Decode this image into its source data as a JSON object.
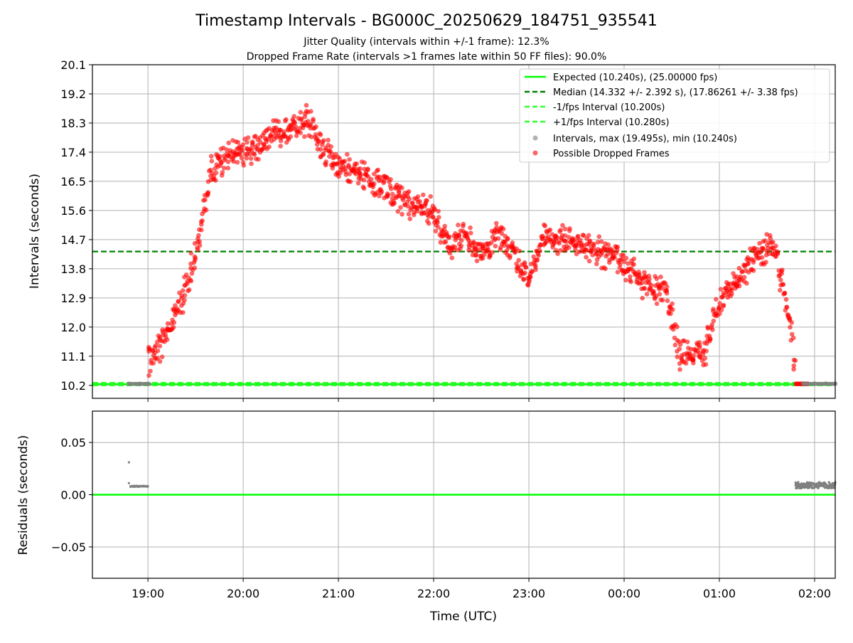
{
  "title": "Timestamp Intervals - BG000C_20250629_184751_935541",
  "subtitle_1": "Jitter Quality (intervals within +/-1 frame): 12.3%",
  "subtitle_2": "Dropped Frame Rate (intervals >1 frames late within 50 FF files): 90.0%",
  "colors": {
    "expected": "#00ff00",
    "median": "#008000",
    "interval_band": "#33ff33",
    "normal_point": "#808080",
    "dropped_point": "#ff0000",
    "grid": "#b0b0b0"
  },
  "chart_data": [
    {
      "type": "scatter",
      "ylabel": "Intervals (seconds)",
      "yticks": [
        "10.2",
        "11.1",
        "12.0",
        "12.9",
        "13.8",
        "14.7",
        "15.6",
        "16.5",
        "17.4",
        "18.3",
        "19.2",
        "20.1"
      ],
      "ylim": [
        9.8,
        20.1
      ],
      "xlim": [
        "18:25",
        "02:13"
      ],
      "grid": true,
      "legend_position": "top-right",
      "reference_lines": {
        "expected": 10.24,
        "median": 14.332,
        "minus_interval": 10.2,
        "plus_interval": 10.28
      },
      "legend": [
        "Expected (10.240s), (25.00000 fps)",
        "Median (14.332 +/- 2.392 s), (17.86261 +/- 3.38 fps)",
        "-1/fps Interval (10.200s)",
        "+1/fps Interval (10.280s)",
        "Intervals, max (19.495s), min (10.240s)",
        "Possible Dropped Frames"
      ],
      "series": [
        {
          "name": "Intervals, max (19.495s), min (10.240s)",
          "points": [
            [
              "18:48",
              10.245
            ],
            [
              "18:55",
              10.245
            ],
            [
              "19:00",
              10.245
            ],
            [
              "01:53",
              10.255
            ],
            [
              "02:00",
              10.255
            ],
            [
              "02:07",
              10.255
            ],
            [
              "02:13",
              10.255
            ]
          ]
        },
        {
          "name": "Possible Dropped Frames",
          "trend": [
            [
              "19:00",
              10.9
            ],
            [
              "19:10",
              11.6
            ],
            [
              "19:20",
              12.7
            ],
            [
              "19:30",
              14.2
            ],
            [
              "19:40",
              16.8
            ],
            [
              "19:50",
              17.3
            ],
            [
              "20:00",
              17.4
            ],
            [
              "20:15",
              17.8
            ],
            [
              "20:30",
              18.2
            ],
            [
              "20:40",
              18.4
            ],
            [
              "20:50",
              17.5
            ],
            [
              "21:00",
              17.1
            ],
            [
              "21:15",
              16.7
            ],
            [
              "21:30",
              16.2
            ],
            [
              "21:45",
              15.8
            ],
            [
              "22:00",
              15.5
            ],
            [
              "22:10",
              14.5
            ],
            [
              "22:20",
              15.0
            ],
            [
              "22:30",
              14.2
            ],
            [
              "22:40",
              14.9
            ],
            [
              "22:50",
              14.3
            ],
            [
              "23:00",
              13.5
            ],
            [
              "23:10",
              14.8
            ],
            [
              "23:20",
              14.7
            ],
            [
              "23:30",
              14.6
            ],
            [
              "23:45",
              14.3
            ],
            [
              "00:00",
              14.0
            ],
            [
              "00:15",
              13.2
            ],
            [
              "00:25",
              13.2
            ],
            [
              "00:30",
              12.4
            ],
            [
              "00:35",
              11.2
            ],
            [
              "00:50",
              11.2
            ],
            [
              "01:00",
              12.8
            ],
            [
              "01:10",
              13.3
            ],
            [
              "01:20",
              14.1
            ],
            [
              "01:30",
              14.5
            ],
            [
              "01:35",
              14.4
            ],
            [
              "01:40",
              13.2
            ],
            [
              "01:45",
              11.8
            ],
            [
              "01:48",
              10.6
            ]
          ],
          "spread": 0.55
        }
      ]
    },
    {
      "type": "scatter",
      "ylabel": "Residuals (seconds)",
      "xlabel": "Time (UTC)",
      "yticks": [
        "−0.05",
        "0.00",
        "0.05"
      ],
      "ylim": [
        -0.08,
        0.08
      ],
      "xticks": [
        "19:00",
        "20:00",
        "21:00",
        "22:00",
        "23:00",
        "00:00",
        "01:00",
        "02:00"
      ],
      "grid": true,
      "zero_line": 0,
      "series": [
        {
          "name": "Residuals",
          "points": [
            [
              "18:48",
              0.031
            ],
            [
              "18:48",
              0.011
            ],
            [
              "18:49",
              0.008
            ],
            [
              "18:52",
              0.008
            ],
            [
              "18:55",
              0.008
            ],
            [
              "18:58",
              0.008
            ],
            [
              "19:00",
              0.008
            ],
            [
              "01:48",
              0.009
            ],
            [
              "01:52",
              0.008
            ],
            [
              "01:56",
              0.01
            ],
            [
              "02:00",
              0.007
            ],
            [
              "02:04",
              0.011
            ],
            [
              "02:08",
              0.009
            ],
            [
              "02:12",
              0.01
            ],
            [
              "02:13",
              0.012
            ]
          ]
        }
      ]
    }
  ]
}
